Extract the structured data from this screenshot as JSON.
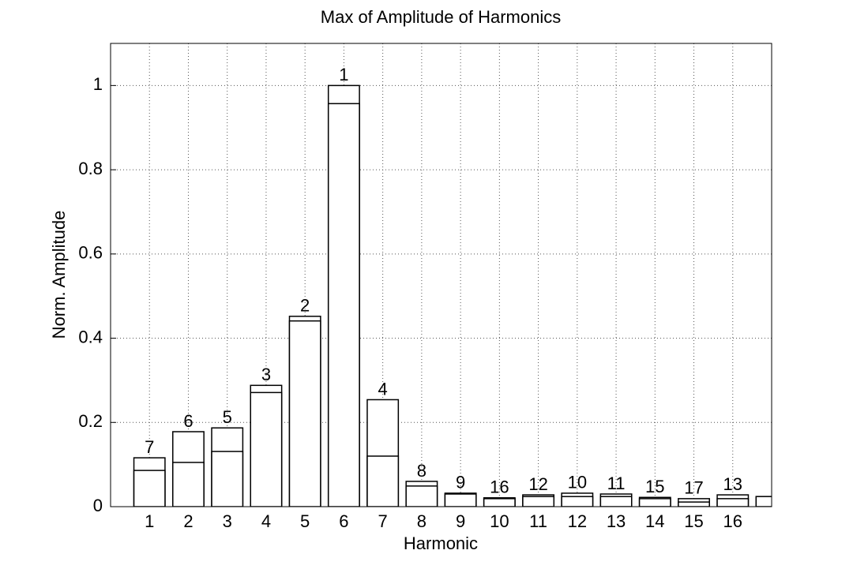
{
  "chart_data": {
    "type": "bar",
    "title": "Max of Amplitude of Harmonics",
    "xlabel": "Harmonic",
    "ylabel": "Norm. Amplitude",
    "x": [
      1,
      2,
      3,
      4,
      5,
      6,
      7,
      8,
      9,
      10,
      11,
      12,
      13,
      14,
      15,
      16,
      17
    ],
    "series": [
      {
        "color": "#ffffff",
        "edgecolor": "#000000",
        "values": [
          0.116,
          0.178,
          0.187,
          0.288,
          0.452,
          1.0,
          0.254,
          0.06,
          0.032,
          0.021,
          0.028,
          0.032,
          0.03,
          0.022,
          0.019,
          0.028,
          0.024
        ]
      },
      {
        "color": "#ffffff",
        "edgecolor": "#000000",
        "values": [
          0.086,
          0.105,
          0.131,
          0.271,
          0.441,
          0.957,
          0.12,
          0.049,
          0.03,
          0.019,
          0.024,
          0.024,
          0.024,
          0.019,
          0.011,
          0.019,
          0.024
        ]
      }
    ],
    "bar_labels": [
      "7",
      "6",
      "5",
      "3",
      "2",
      "1",
      "4",
      "8",
      "9",
      "16",
      "12",
      "10",
      "11",
      "15",
      "17",
      "13",
      null
    ],
    "xlim": [
      0,
      17
    ],
    "xticks": [
      1,
      2,
      3,
      4,
      5,
      6,
      7,
      8,
      9,
      10,
      11,
      12,
      13,
      14,
      15,
      16
    ],
    "ylim": [
      0,
      1.1
    ],
    "yticks": [
      0,
      0.2,
      0.4,
      0.6,
      0.8,
      1
    ],
    "grid": true
  }
}
